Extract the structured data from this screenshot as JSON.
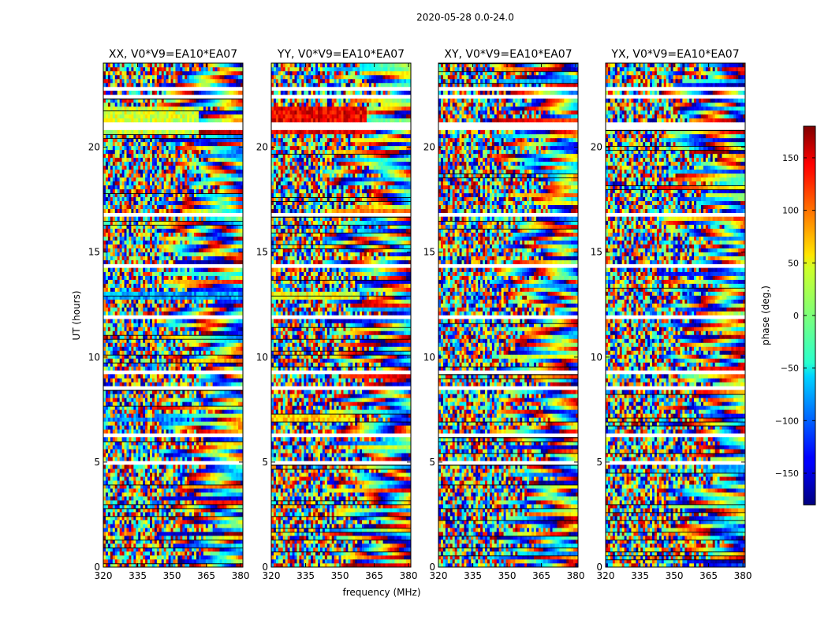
{
  "figure": {
    "suptitle": "2020-05-28 0.0-24.0",
    "xlabel": "frequency (MHz)",
    "ylabel": "UT (hours)"
  },
  "chart_data": {
    "type": "heatmap",
    "panels": [
      {
        "title": "XX, V0*V9=EA10*EA07",
        "pol": "XX"
      },
      {
        "title": "YY, V0*V9=EA10*EA07",
        "pol": "YY"
      },
      {
        "title": "XY, V0*V9=EA10*EA07",
        "pol": "XY"
      },
      {
        "title": "YX, V0*V9=EA10*EA07",
        "pol": "YX"
      }
    ],
    "x_axis": {
      "label": "frequency (MHz)",
      "range": [
        320,
        381
      ],
      "ticks": [
        320,
        335,
        350,
        365,
        380
      ]
    },
    "y_axis": {
      "label": "UT (hours)",
      "range": [
        0,
        24
      ],
      "ticks": [
        0,
        5,
        10,
        15,
        20
      ]
    },
    "colorbar": {
      "label": "phase (deg.)",
      "range": [
        -180,
        180
      ],
      "ticks": [
        -150,
        -100,
        -50,
        0,
        50,
        100,
        150
      ],
      "tick_labels": [
        "−150",
        "−100",
        "−50",
        "0",
        "50",
        "100",
        "150"
      ],
      "colormap": "jet"
    },
    "flagged_time_bands_ut": [
      [
        0.35,
        0.42
      ],
      [
        4.95,
        5.05
      ],
      [
        6.25,
        6.45
      ],
      [
        7.05,
        7.2
      ],
      [
        8.45,
        8.65
      ],
      [
        9.25,
        9.4
      ],
      [
        11.85,
        11.95
      ],
      [
        13.1,
        13.2
      ],
      [
        14.3,
        14.45
      ],
      [
        15.15,
        15.25
      ],
      [
        16.7,
        16.8
      ],
      [
        17.75,
        17.85
      ],
      [
        20.35,
        20.5
      ],
      [
        20.9,
        21.1
      ],
      [
        22.25,
        22.5
      ],
      [
        22.7,
        22.8
      ]
    ],
    "coherent_segments": [
      {
        "pol": "XX",
        "ut": [
          20.6,
          22.0
        ],
        "freq": [
          320,
          362
        ],
        "phase_deg": 30
      },
      {
        "pol": "XX",
        "ut": [
          12.8,
          13.1
        ],
        "freq": [
          320,
          381
        ],
        "phase_deg": -80
      },
      {
        "pol": "XX",
        "ut": [
          6.9,
          7.2
        ],
        "freq": [
          320,
          357
        ],
        "phase_deg": -90
      },
      {
        "pol": "YY",
        "ut": [
          20.6,
          22.0
        ],
        "freq": [
          320,
          362
        ],
        "phase_deg": 140
      },
      {
        "pol": "YY",
        "ut": [
          12.8,
          13.1
        ],
        "freq": [
          320,
          359
        ],
        "phase_deg": 40
      },
      {
        "pol": "YY",
        "ut": [
          6.9,
          7.3
        ],
        "freq": [
          320,
          357
        ],
        "phase_deg": 60
      }
    ]
  }
}
